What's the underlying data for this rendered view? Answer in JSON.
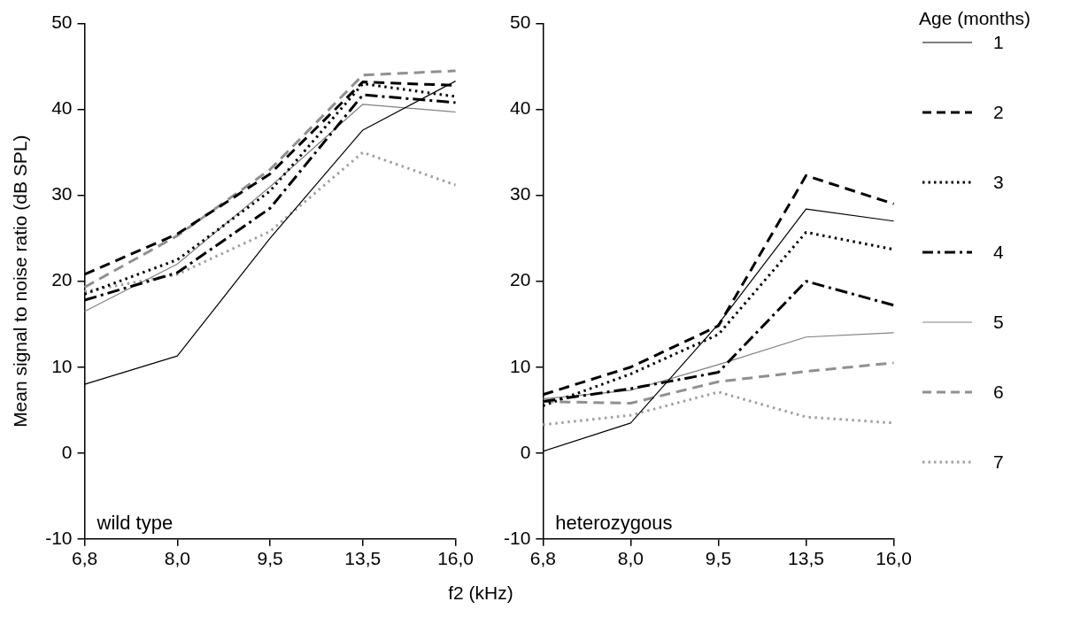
{
  "chart_data": [
    {
      "type": "line",
      "ylabel": "Mean signal to noise ratio (dB SPL)",
      "xlabel": "f2 (kHz)",
      "categories": [
        "6,8",
        "8,0",
        "9,5",
        "13,5",
        "16,0"
      ],
      "ylim": [
        -10,
        50
      ],
      "yticks": [
        -10,
        0,
        10,
        20,
        30,
        40,
        50
      ],
      "grid": false,
      "annotations": [
        "wild type"
      ],
      "legend": "right",
      "legend_title": "Age (months)",
      "series": [
        {
          "name": "1",
          "color": "#000000",
          "line_style": "solid",
          "values": [
            8,
            11.3,
            25,
            37.6,
            43.3
          ]
        },
        {
          "name": "2",
          "color": "#000000",
          "line_style": "dashed",
          "values": [
            20.8,
            25.5,
            32.5,
            43.2,
            42.8
          ]
        },
        {
          "name": "3",
          "color": "#000000",
          "line_style": "dotted",
          "values": [
            18.5,
            22.5,
            30.5,
            43,
            41.5
          ]
        },
        {
          "name": "4",
          "color": "#000000",
          "line_style": "dashdot",
          "values": [
            17.8,
            21,
            28.5,
            41.7,
            40.8
          ]
        },
        {
          "name": "5",
          "color": "#808080",
          "line_style": "solid",
          "values": [
            16.5,
            22,
            31,
            40.6,
            39.7
          ]
        },
        {
          "name": "6",
          "color": "#909090",
          "line_style": "dashed",
          "values": [
            19.3,
            25.3,
            33,
            44,
            44.5
          ]
        },
        {
          "name": "7",
          "color": "#a0a0a0",
          "line_style": "dotted",
          "values": [
            18.8,
            20.8,
            25.8,
            35,
            31.2
          ]
        }
      ]
    },
    {
      "type": "line",
      "categories": [
        "6,8",
        "8,0",
        "9,5",
        "13,5",
        "16,0"
      ],
      "ylim": [
        -10,
        50
      ],
      "yticks": [
        -10,
        0,
        10,
        20,
        30,
        40,
        50
      ],
      "grid": false,
      "annotations": [
        "heterozygous"
      ],
      "series": [
        {
          "name": "1",
          "color": "#000000",
          "line_style": "solid",
          "values": [
            0.2,
            3.5,
            15,
            28.4,
            27
          ]
        },
        {
          "name": "2",
          "color": "#000000",
          "line_style": "dashed",
          "values": [
            6.8,
            10,
            14.8,
            32.3,
            29
          ]
        },
        {
          "name": "3",
          "color": "#000000",
          "line_style": "dotted",
          "values": [
            5.5,
            9.2,
            13.8,
            25.7,
            23.7
          ]
        },
        {
          "name": "4",
          "color": "#000000",
          "line_style": "dashdot",
          "values": [
            6,
            7.5,
            9.4,
            20,
            17.2
          ]
        },
        {
          "name": "5",
          "color": "#808080",
          "line_style": "solid",
          "values": [
            6.3,
            7.3,
            10.3,
            13.5,
            14
          ]
        },
        {
          "name": "6",
          "color": "#909090",
          "line_style": "dashed",
          "values": [
            6,
            5.8,
            8.3,
            9.5,
            10.5
          ]
        },
        {
          "name": "7",
          "color": "#a0a0a0",
          "line_style": "dotted",
          "values": [
            3.3,
            4.4,
            7.1,
            4.2,
            3.5
          ]
        }
      ]
    }
  ]
}
